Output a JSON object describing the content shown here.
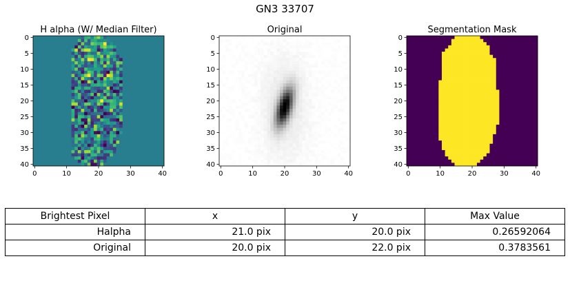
{
  "figure": {
    "title": "GN3 33707"
  },
  "chart_data": [
    {
      "type": "heatmap",
      "title": "H alpha (W/ Median Filter)",
      "colormap": "viridis",
      "shape": [
        41,
        41
      ],
      "xlim": [
        -0.5,
        40.5
      ],
      "ylim": [
        40.5,
        -0.5
      ],
      "xticks": [
        0,
        10,
        20,
        30,
        40
      ],
      "yticks": [
        0,
        5,
        10,
        15,
        20,
        25,
        30,
        35,
        40
      ],
      "background_value": 0.0,
      "value_range": [
        -0.2,
        0.2659
      ],
      "max_pixel": {
        "x": 21,
        "y": 20,
        "value": 0.26592064
      }
    },
    {
      "type": "heatmap",
      "title": "Original",
      "colormap": "gray_r",
      "shape": [
        41,
        41
      ],
      "xlim": [
        -0.5,
        40.5
      ],
      "ylim": [
        40.5,
        -0.5
      ],
      "xticks": [
        0,
        10,
        20,
        30,
        40
      ],
      "yticks": [
        0,
        5,
        10,
        15,
        20,
        25,
        30,
        35,
        40
      ],
      "value_range": [
        0,
        0.3784
      ],
      "max_pixel": {
        "x": 20,
        "y": 22,
        "value": 0.3783561
      }
    },
    {
      "type": "heatmap",
      "title": "Segmentation Mask",
      "colormap": "binary purple-yellow",
      "colors": {
        "off": "#440154",
        "on": "#fde725"
      },
      "shape": [
        41,
        41
      ],
      "xlim": [
        -0.5,
        40.5
      ],
      "ylim": [
        40.5,
        -0.5
      ],
      "xticks": [
        0,
        10,
        20,
        30,
        40
      ],
      "yticks": [
        0,
        5,
        10,
        15,
        20,
        25,
        30,
        35,
        40
      ],
      "mask_rows": [
        [
          15,
          22
        ],
        [
          14,
          23
        ],
        [
          14,
          24
        ],
        [
          13,
          25
        ],
        [
          12,
          25
        ],
        [
          11,
          25
        ],
        [
          11,
          26
        ],
        [
          11,
          27
        ],
        [
          11,
          27
        ],
        [
          11,
          27
        ],
        [
          11,
          27
        ],
        [
          11,
          27
        ],
        [
          11,
          27
        ],
        [
          11,
          27
        ],
        [
          10,
          27
        ],
        [
          10,
          27
        ],
        [
          10,
          27
        ],
        [
          10,
          28
        ],
        [
          10,
          28
        ],
        [
          10,
          28
        ],
        [
          10,
          28
        ],
        [
          10,
          28
        ],
        [
          10,
          28
        ],
        [
          10,
          28
        ],
        [
          10,
          28
        ],
        [
          10,
          28
        ],
        [
          10,
          28
        ],
        [
          10,
          28
        ],
        [
          10,
          27
        ],
        [
          10,
          27
        ],
        [
          10,
          27
        ],
        [
          10,
          26
        ],
        [
          10,
          26
        ],
        [
          11,
          26
        ],
        [
          11,
          25
        ],
        [
          11,
          25
        ],
        [
          12,
          25
        ],
        [
          12,
          24
        ],
        [
          13,
          23
        ],
        [
          14,
          22
        ],
        [
          15,
          21
        ]
      ]
    }
  ],
  "table": {
    "header": [
      "Brightest Pixel",
      "x",
      "y",
      "Max Value"
    ],
    "rows": [
      [
        "Halpha",
        "21.0 pix",
        "20.0 pix",
        "0.26592064"
      ],
      [
        "Original",
        "20.0 pix",
        "22.0 pix",
        "0.3783561"
      ]
    ]
  }
}
